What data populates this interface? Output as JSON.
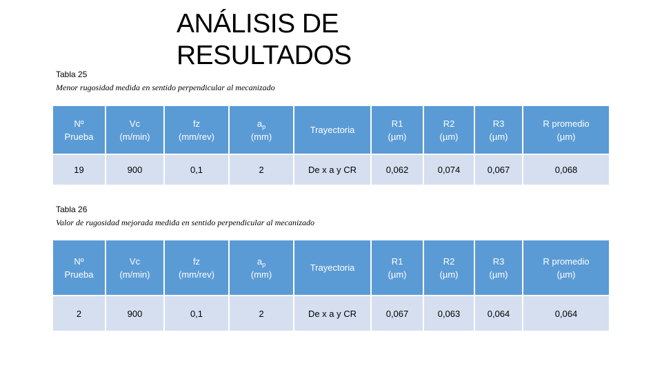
{
  "title_line1": "ANÁLISIS DE",
  "title_line2": "RESULTADOS",
  "table1": {
    "number": "Tabla 25",
    "description": "Menor rugosidad medida en sentido perpendicular al mecanizado",
    "headers": {
      "prueba_1": "Nº",
      "prueba_2": "Prueba",
      "vc_1": "Vc",
      "vc_2": "(m/min)",
      "fz_1": "fz",
      "fz_2": "(mm/rev)",
      "ap_base": "a",
      "ap_sub": "p",
      "ap_2": "(mm)",
      "trayectoria": "Trayectoria",
      "r1_1": "R1",
      "r1_2": "(µm)",
      "r2_1": "R2",
      "r2_2": "(µm)",
      "r3_1": "R3",
      "r3_2": "(µm)",
      "rprom_1": "R promedio",
      "rprom_2": "(µm)"
    },
    "row": [
      "19",
      "900",
      "0,1",
      "2",
      "De x a y CR",
      "0,062",
      "0,074",
      "0,067",
      "0,068"
    ]
  },
  "table2": {
    "number": "Tabla 26",
    "description": "Valor de rugosidad mejorada medida en sentido perpendicular al mecanizado",
    "headers": {
      "prueba_1": "Nº",
      "prueba_2": "Prueba",
      "vc_1": "Vc",
      "vc_2": "(m/min)",
      "fz_1": "fz",
      "fz_2": "(mm/rev)",
      "ap_base": "a",
      "ap_sub": "p",
      "ap_2": "(mm)",
      "trayectoria": "Trayectoria",
      "r1_1": "R1",
      "r1_2": "(µm)",
      "r2_1": "R2",
      "r2_2": "(µm)",
      "r3_1": "R3",
      "r3_2": "(µm)",
      "rprom_1": "R promedio",
      "rprom_2": "(µm)"
    },
    "row": [
      "2",
      "900",
      "0,1",
      "2",
      "De x a y CR",
      "0,067",
      "0,063",
      "0,064",
      "0,064"
    ]
  }
}
